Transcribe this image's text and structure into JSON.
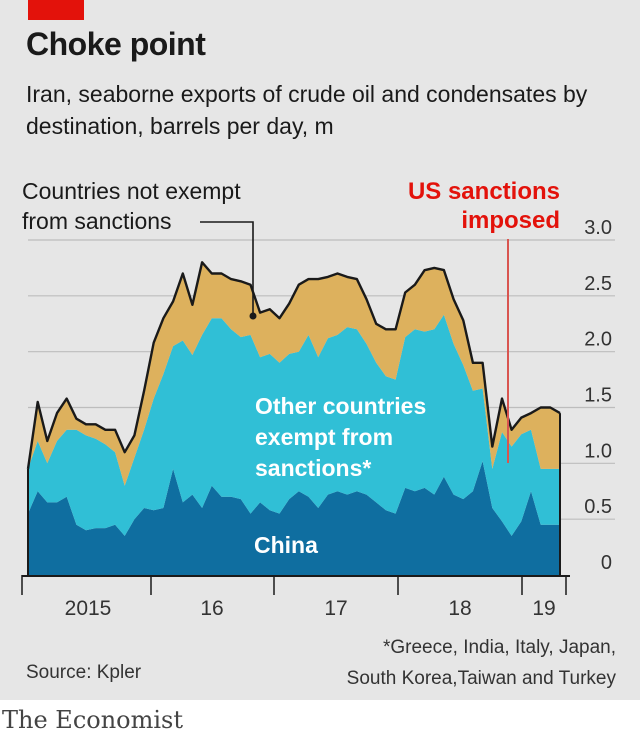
{
  "title": "Choke point",
  "subtitle": "Iran, seaborne exports of crude oil and condensates by destination, barrels per day, m",
  "source": "Source: Kpler",
  "footnote": [
    "*Greece, India, Italy, Japan,",
    "South Korea,Taiwan and Turkey"
  ],
  "brand": "The Economist",
  "colors": {
    "red": "#e3120b",
    "china": "#0f6ea0",
    "exempt": "#30bfd6",
    "not_exempt": "#ddb15d",
    "line": "#1a1a1a"
  },
  "chart_data": {
    "type": "area",
    "stacked": true,
    "x_tick_labels": [
      "2015",
      "16",
      "17",
      "18",
      "19"
    ],
    "y_ticks": [
      0,
      0.5,
      1.0,
      1.5,
      2.0,
      2.5,
      3.0
    ],
    "y_tick_labels": [
      "0",
      "0.5",
      "1.0",
      "1.5",
      "2.0",
      "2.5",
      "3.0"
    ],
    "ylim": [
      0,
      3.0
    ],
    "grid": true,
    "annotations": {
      "not_exempt": [
        "Countries not exempt",
        "from sanctions"
      ],
      "exempt": [
        "Other countries",
        "exempt from",
        "sanctions*"
      ],
      "china": "China",
      "sanctions": [
        "US sanctions",
        "imposed"
      ]
    },
    "x": [
      "2014-10",
      "2014-11",
      "2014-12",
      "2015-01",
      "2015-02",
      "2015-03",
      "2015-04",
      "2015-05",
      "2015-06",
      "2015-07",
      "2015-08",
      "2015-09",
      "2015-10",
      "2015-11",
      "2015-12",
      "2016-01",
      "2016-02",
      "2016-03",
      "2016-04",
      "2016-05",
      "2016-06",
      "2016-07",
      "2016-08",
      "2016-09",
      "2016-10",
      "2016-11",
      "2016-12",
      "2017-01",
      "2017-02",
      "2017-03",
      "2017-04",
      "2017-05",
      "2017-06",
      "2017-07",
      "2017-08",
      "2017-09",
      "2017-10",
      "2017-11",
      "2017-12",
      "2018-01",
      "2018-02",
      "2018-03",
      "2018-04",
      "2018-05",
      "2018-06",
      "2018-07",
      "2018-08",
      "2018-09",
      "2018-10",
      "2018-11",
      "2018-12",
      "2019-01",
      "2019-02",
      "2019-03",
      "2019-04",
      "2019-05"
    ],
    "series": [
      {
        "name": "China",
        "values": [
          0.55,
          0.75,
          0.65,
          0.65,
          0.7,
          0.45,
          0.4,
          0.42,
          0.42,
          0.45,
          0.35,
          0.5,
          0.6,
          0.58,
          0.6,
          0.95,
          0.65,
          0.72,
          0.6,
          0.8,
          0.7,
          0.7,
          0.68,
          0.55,
          0.65,
          0.58,
          0.55,
          0.68,
          0.75,
          0.7,
          0.6,
          0.72,
          0.75,
          0.72,
          0.75,
          0.72,
          0.65,
          0.58,
          0.55,
          0.78,
          0.75,
          0.78,
          0.72,
          0.88,
          0.72,
          0.68,
          0.75,
          1.02,
          0.6,
          0.48,
          0.35,
          0.48,
          0.75,
          0.45,
          0.45,
          0.45
        ]
      },
      {
        "name": "Other countries exempt from sanctions",
        "values": [
          0.4,
          0.45,
          0.35,
          0.55,
          0.6,
          0.85,
          0.85,
          0.8,
          0.75,
          0.65,
          0.45,
          0.55,
          0.7,
          1.0,
          1.2,
          1.1,
          1.45,
          1.25,
          1.55,
          1.5,
          1.6,
          1.5,
          1.45,
          1.6,
          1.3,
          1.4,
          1.35,
          1.3,
          1.25,
          1.45,
          1.35,
          1.4,
          1.4,
          1.5,
          1.45,
          1.35,
          1.25,
          1.2,
          1.2,
          1.35,
          1.45,
          1.4,
          1.48,
          1.45,
          1.35,
          1.2,
          0.9,
          0.65,
          0.35,
          0.8,
          0.8,
          0.78,
          0.55,
          0.5,
          0.5,
          0.5
        ]
      },
      {
        "name": "Countries not exempt from sanctions",
        "values": [
          0.0,
          0.35,
          0.2,
          0.25,
          0.28,
          0.1,
          0.1,
          0.13,
          0.13,
          0.2,
          0.3,
          0.2,
          0.35,
          0.5,
          0.5,
          0.4,
          0.6,
          0.45,
          0.65,
          0.4,
          0.4,
          0.45,
          0.5,
          0.45,
          0.4,
          0.4,
          0.4,
          0.45,
          0.6,
          0.5,
          0.7,
          0.55,
          0.55,
          0.45,
          0.45,
          0.4,
          0.35,
          0.42,
          0.45,
          0.4,
          0.4,
          0.55,
          0.55,
          0.4,
          0.4,
          0.4,
          0.25,
          0.23,
          0.2,
          0.3,
          0.15,
          0.15,
          0.15,
          0.55,
          0.55,
          0.5
        ]
      }
    ]
  }
}
